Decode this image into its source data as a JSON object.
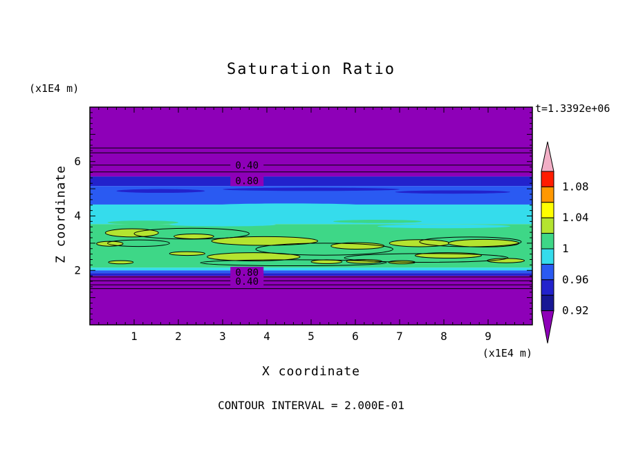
{
  "chart_data": {
    "type": "heatmap",
    "subtype": "filled-contour",
    "title": "Saturation Ratio",
    "xlabel": "X coordinate",
    "ylabel": "Z coordinate",
    "x_unit_label": "(x1E4 m)",
    "z_unit_label": "(x1E4 m)",
    "time_annotation": "t=1.3392e+06",
    "contour_interval_label": "CONTOUR INTERVAL = 2.000E-01",
    "contour_interval_value": 0.2,
    "x_range": [
      0,
      10
    ],
    "z_range": [
      0,
      8
    ],
    "x_major_ticks": [
      1,
      2,
      3,
      4,
      5,
      6,
      7,
      8,
      9
    ],
    "z_major_ticks": [
      2,
      4,
      6
    ],
    "minor_tick_step": 0.2,
    "palette": {
      "purple": "#8e00b8",
      "deepnavy": "#171794",
      "navy": "#2222cc",
      "blue": "#2a5af2",
      "cyan": "#35dcec",
      "green": "#3ed787",
      "chartreuse": "#b4e430",
      "yellow": "#ffff00",
      "orange": "#ff9800",
      "red": "#ff1c00",
      "pink": "#f2afc6"
    },
    "bands": [
      {
        "z0": 5.45,
        "z1": 8.0,
        "color": "purple"
      },
      {
        "z0": 5.1,
        "z1": 5.45,
        "color": "navy"
      },
      {
        "z0": 4.42,
        "z1": 5.1,
        "color": "blue"
      },
      {
        "z0": 3.7,
        "z1": 4.42,
        "color": "cyan"
      },
      {
        "z0": 2.1,
        "z1": 3.7,
        "color": "green"
      },
      {
        "z0": 2.0,
        "z1": 2.1,
        "color": "cyan"
      },
      {
        "z0": 1.9,
        "z1": 2.0,
        "color": "blue"
      },
      {
        "z0": 1.8,
        "z1": 1.9,
        "color": "navy"
      },
      {
        "z0": 0.0,
        "z1": 1.8,
        "color": "purple"
      }
    ],
    "streaks": [
      {
        "x": 1.6,
        "z": 4.92,
        "rx": 1.0,
        "rz": 0.07,
        "color": "navy"
      },
      {
        "x": 5.0,
        "z": 4.98,
        "rx": 2.0,
        "rz": 0.06,
        "color": "navy"
      },
      {
        "x": 8.2,
        "z": 4.88,
        "rx": 1.3,
        "rz": 0.06,
        "color": "navy"
      },
      {
        "x": 4.5,
        "z": 4.4,
        "rx": 1.6,
        "rz": 0.06,
        "color": "cyan"
      },
      {
        "x": 8.0,
        "z": 3.62,
        "rx": 1.5,
        "rz": 0.07,
        "color": "cyan"
      },
      {
        "x": 3.0,
        "z": 3.68,
        "rx": 1.2,
        "rz": 0.06,
        "color": "cyan"
      },
      {
        "x": 1.2,
        "z": 3.76,
        "rx": 0.8,
        "rz": 0.07,
        "color": "green"
      },
      {
        "x": 6.5,
        "z": 3.8,
        "rx": 1.0,
        "rz": 0.06,
        "color": "green"
      }
    ],
    "blobs": [
      {
        "x": 0.95,
        "z": 3.38,
        "rx": 0.6,
        "rz": 0.15
      },
      {
        "x": 0.45,
        "z": 2.98,
        "rx": 0.3,
        "rz": 0.09
      },
      {
        "x": 2.35,
        "z": 3.25,
        "rx": 0.45,
        "rz": 0.09
      },
      {
        "x": 3.95,
        "z": 3.08,
        "rx": 1.2,
        "rz": 0.16
      },
      {
        "x": 3.7,
        "z": 2.5,
        "rx": 1.05,
        "rz": 0.15
      },
      {
        "x": 6.05,
        "z": 2.9,
        "rx": 0.6,
        "rz": 0.12
      },
      {
        "x": 7.45,
        "z": 3.0,
        "rx": 0.68,
        "rz": 0.13
      },
      {
        "x": 8.9,
        "z": 3.0,
        "rx": 0.8,
        "rz": 0.14
      },
      {
        "x": 8.1,
        "z": 2.55,
        "rx": 0.75,
        "rz": 0.1
      },
      {
        "x": 5.35,
        "z": 2.32,
        "rx": 0.35,
        "rz": 0.07
      },
      {
        "x": 6.2,
        "z": 2.33,
        "rx": 0.4,
        "rz": 0.07
      },
      {
        "x": 7.05,
        "z": 2.3,
        "rx": 0.3,
        "rz": 0.06
      },
      {
        "x": 9.4,
        "z": 2.36,
        "rx": 0.42,
        "rz": 0.08
      },
      {
        "x": 0.7,
        "z": 2.3,
        "rx": 0.28,
        "rz": 0.06
      },
      {
        "x": 2.2,
        "z": 2.62,
        "rx": 0.4,
        "rz": 0.07
      }
    ],
    "contour_loops": [
      {
        "x": 2.3,
        "z": 3.35,
        "rx": 1.3,
        "rz": 0.2
      },
      {
        "x": 5.3,
        "z": 2.78,
        "rx": 1.55,
        "rz": 0.22
      },
      {
        "x": 7.6,
        "z": 2.46,
        "rx": 1.85,
        "rz": 0.16
      },
      {
        "x": 4.6,
        "z": 2.28,
        "rx": 2.1,
        "rz": 0.11
      },
      {
        "x": 8.6,
        "z": 3.05,
        "rx": 1.15,
        "rz": 0.18
      },
      {
        "x": 1.1,
        "z": 3.0,
        "rx": 0.7,
        "rz": 0.12
      }
    ],
    "contour_lines_z": [
      6.5,
      6.32,
      5.87,
      5.62,
      1.76,
      1.62,
      1.47,
      1.33
    ],
    "contour_labels": [
      {
        "text": "0.40",
        "x": 3.55,
        "z": 5.87,
        "bg": "purple"
      },
      {
        "text": "0.80",
        "x": 3.55,
        "z": 5.3,
        "bg": "purple"
      },
      {
        "text": "0.80",
        "x": 3.55,
        "z": 1.93,
        "bg": "purple"
      },
      {
        "text": "0.40",
        "x": 3.55,
        "z": 1.6,
        "bg": "purple"
      }
    ],
    "colorbar": {
      "segments": [
        "red",
        "orange",
        "yellow",
        "chartreuse",
        "green",
        "cyan",
        "blue",
        "navy",
        "deepnavy"
      ],
      "boundary_labels": [
        "1.08",
        "1.04",
        "1",
        "0.96",
        "0.92"
      ],
      "arrow_top_color": "pink",
      "arrow_bottom_color": "purple"
    }
  }
}
